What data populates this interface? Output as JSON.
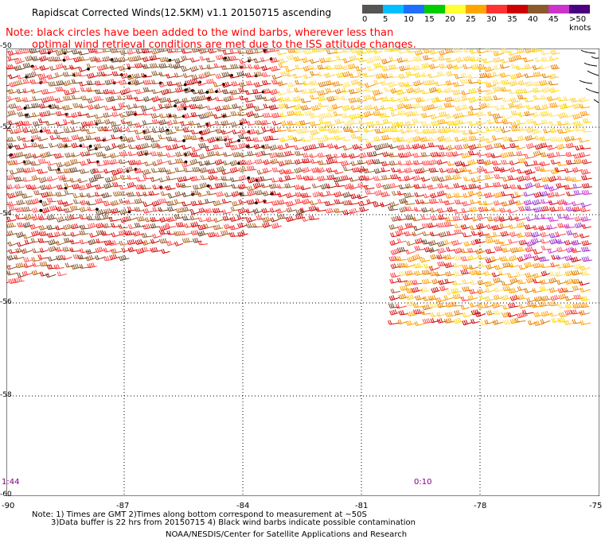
{
  "title": "Rapidscat Corrected Winds(12.5KM) v1.1 20150715 ascending",
  "note_line1": "Note: black circles have been added to the wind barbs, wherever less than",
  "note_line2": "optimal wind retrieval conditions are met due to the ISS attitude changes.",
  "colorbar": {
    "labels": [
      "0",
      "5",
      "10",
      "15",
      "20",
      "25",
      "30",
      "35",
      "40",
      "45",
      ">50 knots"
    ],
    "colors": [
      "#555555",
      "#00bfff",
      "#1e6fff",
      "#00cc00",
      "#ffff33",
      "#ffa500",
      "#ff3333",
      "#cc0000",
      "#8b5a2b",
      "#cc33cc",
      "#4b0082"
    ]
  },
  "lat_labels": [
    "-50",
    "-52",
    "-54",
    "-56",
    "-58",
    "-60"
  ],
  "lon_labels": [
    "-90",
    "-87",
    "-84",
    "-81",
    "-78",
    "-75"
  ],
  "time_labels": [
    "1:44",
    "0:10"
  ],
  "footnote_line1": "Note: 1) Times are GMT 2)Times along bottom correspond to measurement at ~50S",
  "footnote_line2": "3)Data buffer is 22 hrs from 20150715 4) Black wind barbs indicate possible contamination",
  "credit": "NOAA/NESDIS/Center for Satellite Applications and Research"
}
